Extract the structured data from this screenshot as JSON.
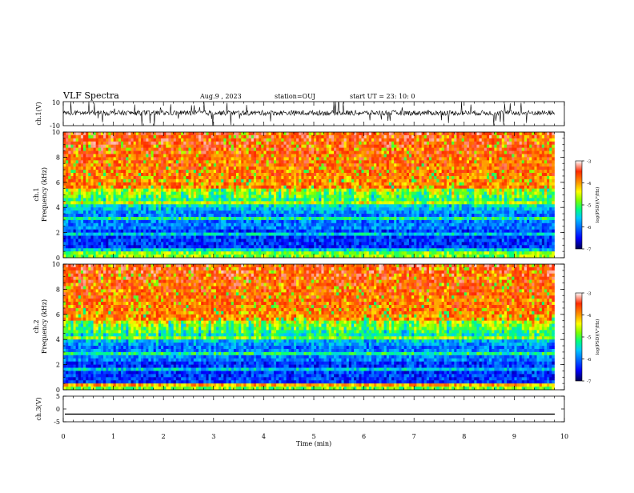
{
  "header": {
    "title": "VLF Spectra",
    "date": "Aug.9 , 2023",
    "station": "station=OUJ",
    "start": "start UT = 23: 10: 0"
  },
  "chart_data": [
    {
      "type": "line",
      "panel": "ch1-waveform",
      "ylabel": "ch.1(V)",
      "ylim": [
        -10,
        10
      ],
      "y_tick_labels": [
        "10",
        "-10"
      ],
      "xlim": [
        0,
        10
      ],
      "data_end_min": 9.8
    },
    {
      "type": "heatmap",
      "panel": "ch1-spectrogram",
      "ylabel": "ch.1\nFrequency (kHz)",
      "ylabel_line1": "ch.1",
      "ylabel_line2": "Frequency (kHz)",
      "ylim": [
        0,
        10
      ],
      "y_ticks": [
        "0",
        "2",
        "4",
        "6",
        "8",
        "10"
      ],
      "xlim": [
        0,
        10
      ],
      "data_end_min": 9.8,
      "colorbar": {
        "label": "log(PSD)(V²/Hz)",
        "range": [
          -7,
          -3
        ],
        "ticks": [
          "-3",
          "-4",
          "-5",
          "-6",
          "-7"
        ]
      }
    },
    {
      "type": "heatmap",
      "panel": "ch2-spectrogram",
      "ylabel": "ch.2\nFrequency (kHz)",
      "ylabel_line1": "ch.2",
      "ylabel_line2": "Frequency (kHz)",
      "ylim": [
        0,
        10
      ],
      "y_ticks": [
        "0",
        "2",
        "4",
        "6",
        "8",
        "10"
      ],
      "xlim": [
        0,
        10
      ],
      "data_end_min": 9.8,
      "colorbar": {
        "label": "log(PSD)(V²/Hz)",
        "range": [
          -7,
          -3
        ],
        "ticks": [
          "-3",
          "-4",
          "-5",
          "-6",
          "-7"
        ]
      }
    },
    {
      "type": "line",
      "panel": "ch3-waveform",
      "ylabel": "ch.3(V)",
      "ylim": [
        -5,
        5
      ],
      "y_ticks": [
        "5",
        "0",
        "-5"
      ],
      "xlim": [
        0,
        10
      ],
      "x_ticks": [
        "0",
        "1",
        "2",
        "3",
        "4",
        "5",
        "6",
        "7",
        "8",
        "9",
        "10"
      ],
      "xlabel": "Time (min)",
      "constant_value": -2
    }
  ],
  "colors": {
    "scale": [
      "#00007a",
      "#0000ff",
      "#00c8ff",
      "#00ff7f",
      "#7fff00",
      "#ffff00",
      "#ff9a00",
      "#ff2a00",
      "#ffffff"
    ]
  }
}
